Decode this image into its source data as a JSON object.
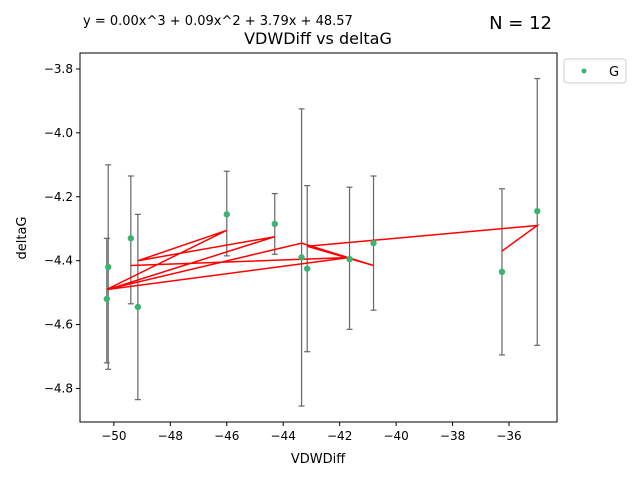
{
  "chart_data": {
    "type": "scatter",
    "title": "VDWDiff vs deltaG",
    "equation": "y = 0.00x^3 + 0.09x^2 + 3.79x + 48.57",
    "n_label": "N = 12",
    "xlabel": "VDWDiff",
    "ylabel": "deltaG",
    "xlim": [
      -51.2,
      -34.3
    ],
    "ylim": [
      -4.905,
      -3.75
    ],
    "x_ticks": [
      -50,
      -48,
      -46,
      -44,
      -42,
      -40,
      -38,
      -36
    ],
    "x_tick_labels": [
      "−50",
      "−48",
      "−46",
      "−44",
      "−42",
      "−40",
      "−38",
      "−36"
    ],
    "y_ticks": [
      -4.8,
      -4.6,
      -4.4,
      -4.2,
      -4.0,
      -3.8
    ],
    "y_tick_labels": [
      "−4.8",
      "−4.6",
      "−4.4",
      "−4.2",
      "−4.0",
      "−3.8"
    ],
    "legend": {
      "label": "G",
      "position": "upper-right-outside"
    },
    "grid": false,
    "colors": {
      "points": "#3cb371",
      "fit_line": "#ff0000",
      "error_bars": "#666666"
    },
    "series": [
      {
        "name": "G",
        "points": [
          {
            "x": -50.25,
            "y": -4.52,
            "err_low": -4.72,
            "err_high": -4.33
          },
          {
            "x": -50.2,
            "y": -4.42,
            "err_low": -4.74,
            "err_high": -4.1
          },
          {
            "x": -49.4,
            "y": -4.33,
            "err_low": -4.535,
            "err_high": -4.135
          },
          {
            "x": -49.15,
            "y": -4.545,
            "err_low": -4.835,
            "err_high": -4.255
          },
          {
            "x": -46.0,
            "y": -4.255,
            "err_low": -4.385,
            "err_high": -4.12
          },
          {
            "x": -44.3,
            "y": -4.285,
            "err_low": -4.38,
            "err_high": -4.19
          },
          {
            "x": -43.35,
            "y": -4.39,
            "err_low": -4.855,
            "err_high": -3.925
          },
          {
            "x": -43.15,
            "y": -4.425,
            "err_low": -4.685,
            "err_high": -4.165
          },
          {
            "x": -41.65,
            "y": -4.395,
            "err_low": -4.615,
            "err_high": -4.17
          },
          {
            "x": -40.8,
            "y": -4.345,
            "err_low": -4.555,
            "err_high": -4.135
          },
          {
            "x": -36.25,
            "y": -4.435,
            "err_low": -4.695,
            "err_high": -4.175
          },
          {
            "x": -35.0,
            "y": -4.245,
            "err_low": -4.665,
            "err_high": -3.83
          }
        ]
      }
    ],
    "fit_line": {
      "x": [
        -36.25,
        -35.0,
        -43.15,
        -40.8,
        -43.35,
        -50.25,
        -46.0,
        -49.15,
        -44.3,
        -50.2,
        -41.65,
        -49.4
      ],
      "y": [
        -4.37,
        -4.29,
        -4.355,
        -4.415,
        -4.345,
        -4.49,
        -4.305,
        -4.4,
        -4.325,
        -4.49,
        -4.39,
        -4.415
      ]
    }
  }
}
